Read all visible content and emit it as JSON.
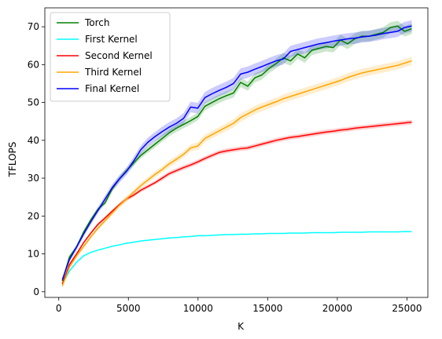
{
  "chart_data": {
    "type": "line",
    "title": "",
    "xlabel": "K",
    "ylabel": "TFLOPS",
    "xlim": [
      -1000,
      26500
    ],
    "ylim": [
      -1.5,
      75
    ],
    "x_ticks": [
      0,
      5000,
      10000,
      15000,
      20000,
      25000
    ],
    "y_ticks": [
      0,
      10,
      20,
      30,
      40,
      50,
      60,
      70
    ],
    "grid": false,
    "legend_position": "top-left",
    "x": [
      256,
      768,
      1280,
      1792,
      2304,
      2816,
      3328,
      3840,
      4352,
      4864,
      5376,
      5888,
      6400,
      6912,
      7424,
      7936,
      8448,
      8960,
      9472,
      9984,
      10496,
      11008,
      11520,
      12032,
      12544,
      13056,
      13568,
      14080,
      14592,
      15104,
      15616,
      16128,
      16640,
      17152,
      17664,
      18176,
      18688,
      19200,
      19712,
      20224,
      20736,
      21248,
      21760,
      22272,
      22784,
      23296,
      23808,
      24320,
      24832,
      25344
    ],
    "series": [
      {
        "name": "Torch",
        "color": "#008000",
        "values": [
          2.8,
          9.2,
          11.8,
          15.8,
          19.0,
          21.8,
          23.5,
          27.2,
          29.8,
          32.0,
          34.0,
          36.0,
          37.5,
          39.0,
          40.5,
          42.0,
          43.2,
          44.2,
          45.2,
          46.3,
          49.0,
          50.0,
          51.0,
          51.8,
          52.5,
          55.3,
          54.3,
          56.5,
          57.3,
          59.0,
          60.3,
          61.8,
          61.0,
          62.8,
          61.8,
          63.8,
          64.3,
          64.8,
          64.5,
          66.5,
          65.5,
          66.8,
          67.5,
          67.5,
          68.0,
          68.5,
          69.8,
          70.2,
          68.8,
          69.5
        ],
        "band": [
          0.3,
          0.5,
          0.5,
          0.5,
          0.5,
          0.6,
          0.6,
          0.7,
          0.7,
          0.7,
          0.8,
          0.8,
          0.8,
          0.9,
          0.9,
          0.9,
          1.0,
          1.0,
          1.0,
          1.0,
          1.1,
          1.1,
          1.1,
          1.1,
          1.2,
          1.2,
          1.2,
          1.2,
          1.2,
          1.2,
          1.3,
          1.3,
          1.3,
          1.3,
          1.3,
          1.3,
          1.3,
          1.3,
          1.3,
          1.4,
          1.4,
          1.4,
          1.4,
          1.4,
          1.4,
          1.4,
          1.4,
          1.4,
          1.4,
          1.4
        ]
      },
      {
        "name": "First Kernel",
        "color": "#00ffff",
        "values": [
          2.0,
          5.5,
          7.8,
          9.5,
          10.4,
          11.0,
          11.5,
          12.0,
          12.4,
          12.8,
          13.1,
          13.4,
          13.6,
          13.8,
          14.0,
          14.2,
          14.3,
          14.5,
          14.6,
          14.8,
          14.8,
          14.9,
          15.0,
          15.1,
          15.1,
          15.2,
          15.2,
          15.3,
          15.3,
          15.4,
          15.4,
          15.4,
          15.5,
          15.5,
          15.5,
          15.6,
          15.6,
          15.6,
          15.6,
          15.7,
          15.7,
          15.7,
          15.7,
          15.8,
          15.8,
          15.8,
          15.8,
          15.8,
          15.9,
          15.9
        ],
        "band": [
          0.1,
          0.1,
          0.1,
          0.1,
          0.1,
          0.1,
          0.1,
          0.1,
          0.1,
          0.1,
          0.1,
          0.1,
          0.1,
          0.1,
          0.1,
          0.1,
          0.1,
          0.1,
          0.1,
          0.1,
          0.1,
          0.1,
          0.1,
          0.1,
          0.1,
          0.1,
          0.1,
          0.1,
          0.1,
          0.1,
          0.1,
          0.1,
          0.1,
          0.1,
          0.1,
          0.1,
          0.1,
          0.1,
          0.1,
          0.1,
          0.1,
          0.1,
          0.1,
          0.1,
          0.1,
          0.1,
          0.1,
          0.1,
          0.1,
          0.1
        ]
      },
      {
        "name": "Second Kernel",
        "color": "#ff0000",
        "values": [
          2.0,
          7.2,
          10.0,
          13.0,
          15.5,
          17.8,
          19.5,
          21.3,
          23.0,
          24.5,
          25.5,
          26.8,
          27.8,
          28.8,
          30.0,
          31.2,
          32.0,
          32.8,
          33.5,
          34.3,
          35.2,
          36.0,
          36.8,
          37.2,
          37.5,
          37.8,
          38.0,
          38.5,
          39.0,
          39.5,
          40.0,
          40.4,
          40.8,
          41.0,
          41.3,
          41.6,
          41.9,
          42.2,
          42.4,
          42.7,
          42.9,
          43.2,
          43.4,
          43.6,
          43.8,
          44.0,
          44.2,
          44.4,
          44.6,
          44.8
        ],
        "band": [
          0.2,
          0.3,
          0.3,
          0.3,
          0.3,
          0.4,
          0.4,
          0.4,
          0.4,
          0.5,
          0.5,
          0.5,
          0.5,
          0.5,
          0.6,
          0.6,
          0.6,
          0.6,
          0.6,
          0.6,
          0.6,
          0.6,
          0.6,
          0.6,
          0.6,
          0.6,
          0.6,
          0.6,
          0.6,
          0.6,
          0.6,
          0.6,
          0.6,
          0.6,
          0.6,
          0.6,
          0.6,
          0.6,
          0.6,
          0.6,
          0.6,
          0.6,
          0.6,
          0.6,
          0.6,
          0.6,
          0.6,
          0.6,
          0.6,
          0.6
        ]
      },
      {
        "name": "Third Kernel",
        "color": "#ffa500",
        "values": [
          1.5,
          6.5,
          9.5,
          12.0,
          14.5,
          16.8,
          18.8,
          20.8,
          22.8,
          24.5,
          26.3,
          28.0,
          29.5,
          31.0,
          32.3,
          33.8,
          35.0,
          36.3,
          38.0,
          38.5,
          40.5,
          41.5,
          42.5,
          43.5,
          44.5,
          46.0,
          47.0,
          48.0,
          48.8,
          49.5,
          50.2,
          51.0,
          51.6,
          52.2,
          52.8,
          53.4,
          54.0,
          54.6,
          55.2,
          55.8,
          56.6,
          57.2,
          57.8,
          58.2,
          58.6,
          59.0,
          59.4,
          59.8,
          60.4,
          61.0
        ],
        "band": [
          0.2,
          0.4,
          0.5,
          0.5,
          0.5,
          0.6,
          0.6,
          0.6,
          0.7,
          0.7,
          0.7,
          0.8,
          0.8,
          0.8,
          0.8,
          0.9,
          0.9,
          0.9,
          0.9,
          1.0,
          1.0,
          1.0,
          1.0,
          1.0,
          1.1,
          1.1,
          1.1,
          1.1,
          1.1,
          1.1,
          1.1,
          1.1,
          1.1,
          1.1,
          1.1,
          1.1,
          1.1,
          1.1,
          1.1,
          1.1,
          1.1,
          1.1,
          1.1,
          1.1,
          1.1,
          1.1,
          1.1,
          1.1,
          1.1,
          1.1
        ]
      },
      {
        "name": "Final Kernel",
        "color": "#0000ff",
        "values": [
          3.2,
          8.5,
          11.8,
          15.3,
          18.5,
          21.5,
          24.5,
          27.5,
          29.8,
          31.8,
          34.5,
          37.5,
          39.5,
          41.0,
          42.3,
          43.5,
          44.5,
          45.8,
          48.8,
          48.5,
          51.3,
          52.3,
          53.2,
          54.0,
          55.0,
          57.5,
          58.0,
          58.8,
          59.5,
          60.3,
          61.0,
          61.5,
          63.5,
          64.0,
          64.5,
          65.0,
          65.5,
          65.8,
          66.2,
          66.5,
          66.8,
          67.0,
          67.3,
          67.5,
          67.8,
          68.2,
          68.5,
          68.8,
          69.8,
          70.2
        ],
        "band": [
          0.4,
          0.6,
          0.7,
          0.7,
          0.8,
          0.8,
          0.9,
          0.9,
          1.0,
          1.0,
          1.1,
          1.1,
          1.2,
          1.2,
          1.3,
          1.3,
          1.3,
          1.4,
          1.4,
          1.4,
          1.5,
          1.5,
          1.5,
          1.5,
          1.5,
          1.5,
          1.5,
          1.5,
          1.5,
          1.5,
          1.5,
          1.5,
          1.5,
          1.5,
          1.5,
          1.5,
          1.5,
          1.5,
          1.5,
          1.5,
          1.5,
          1.5,
          1.5,
          1.5,
          1.5,
          1.5,
          1.5,
          1.5,
          1.5,
          1.5
        ]
      }
    ]
  }
}
